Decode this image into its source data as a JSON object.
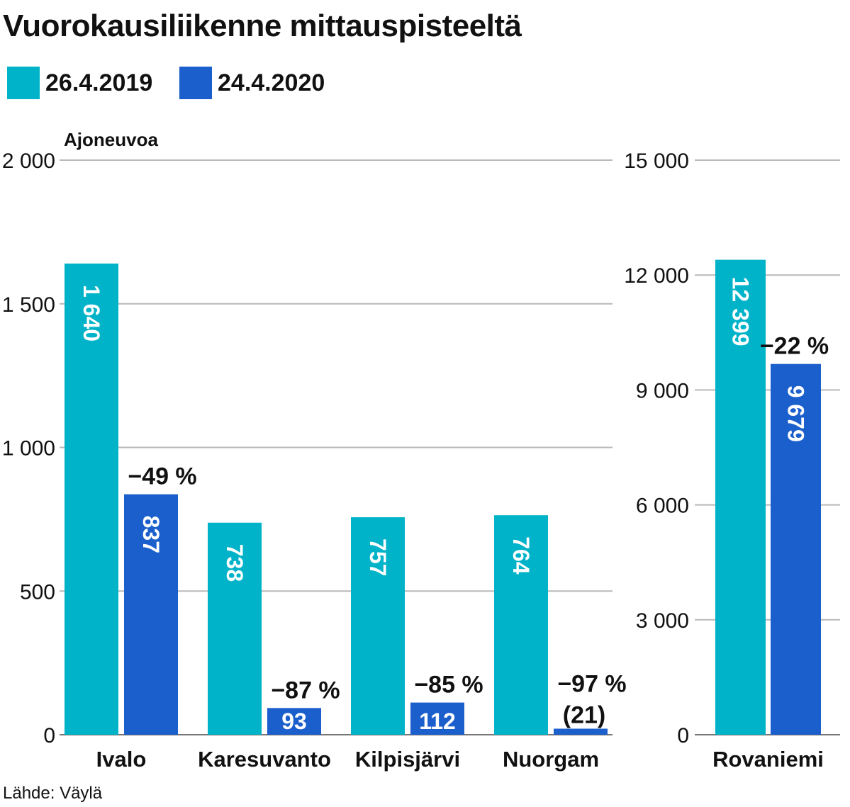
{
  "title": "Vuorokausiliikenne mittauspisteeltä",
  "source": "Lähde: Väylä",
  "colors": {
    "series_2019": "#00b3c8",
    "series_2020": "#1b5fcc"
  },
  "chart_data": [
    {
      "type": "bar",
      "title": "Vuorokausiliikenne mittauspisteeltä",
      "ylabel": "Ajoneuvoa",
      "ylim": [
        0,
        2000
      ],
      "yticks": [
        0,
        500,
        1000,
        1500,
        2000
      ],
      "ytick_labels": [
        "0",
        "500",
        "1 000",
        "1 500",
        "2 000"
      ],
      "categories": [
        "Ivalo",
        "Karesuvanto",
        "Kilpisjärvi",
        "Nuorgam"
      ],
      "series": [
        {
          "name": "26.4.2019",
          "values": [
            1640,
            738,
            757,
            764
          ],
          "labels": [
            "1 640",
            "738",
            "757",
            "764"
          ]
        },
        {
          "name": "24.4.2020",
          "values": [
            837,
            93,
            112,
            21
          ],
          "labels": [
            "837",
            "93",
            "112",
            "(21)"
          ]
        }
      ],
      "annotations": [
        "−49 %",
        "−87 %",
        "−85 %",
        "−97 %"
      ],
      "grid": true,
      "legend": "top-left"
    },
    {
      "type": "bar",
      "ylim": [
        0,
        15000
      ],
      "yticks": [
        0,
        3000,
        6000,
        9000,
        12000,
        15000
      ],
      "ytick_labels": [
        "0",
        "3 000",
        "6 000",
        "9 000",
        "12 000",
        "15 000"
      ],
      "categories": [
        "Rovaniemi"
      ],
      "series": [
        {
          "name": "26.4.2019",
          "values": [
            12399
          ],
          "labels": [
            "12 399"
          ]
        },
        {
          "name": "24.4.2020",
          "values": [
            9679
          ],
          "labels": [
            "9 679"
          ]
        }
      ],
      "annotations": [
        "−22 %"
      ],
      "grid": true
    }
  ]
}
